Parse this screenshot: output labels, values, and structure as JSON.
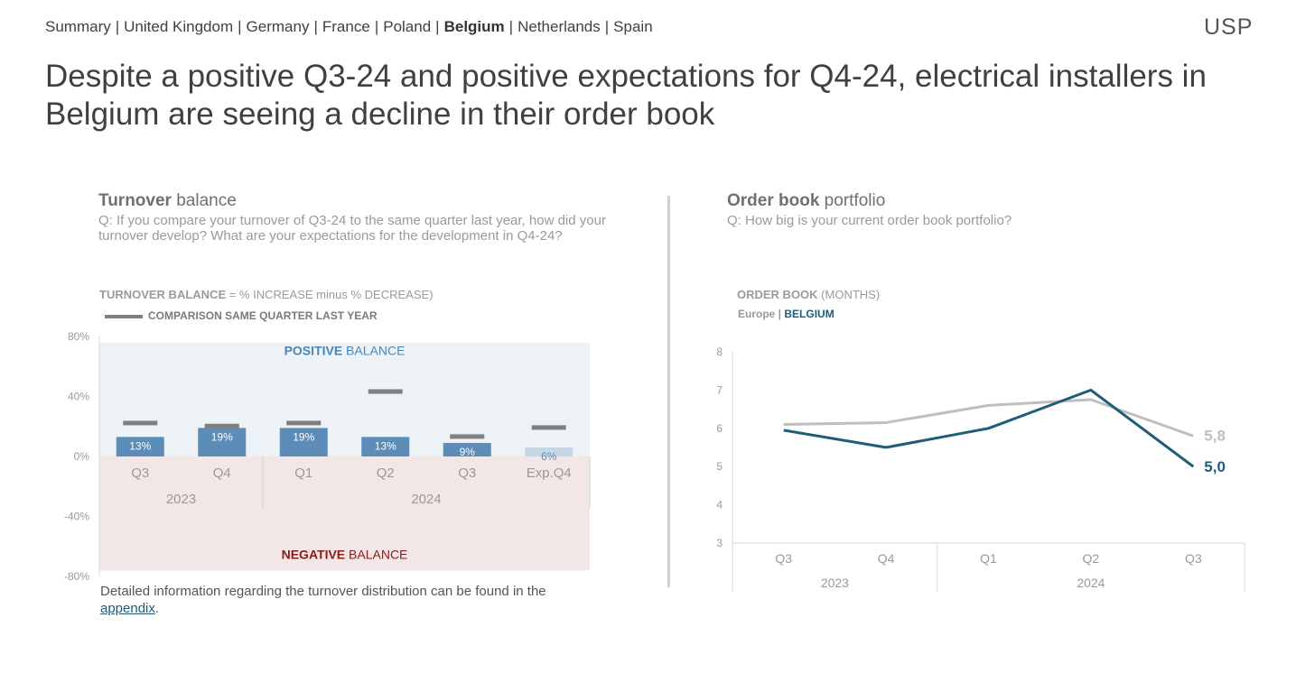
{
  "nav": {
    "items": [
      {
        "label": "Summary",
        "active": false
      },
      {
        "label": "United Kingdom",
        "active": false
      },
      {
        "label": "Germany",
        "active": false
      },
      {
        "label": "France",
        "active": false
      },
      {
        "label": "Poland",
        "active": false
      },
      {
        "label": "Belgium",
        "active": true
      },
      {
        "label": "Netherlands",
        "active": false
      },
      {
        "label": "Spain",
        "active": false
      }
    ],
    "separator": "|"
  },
  "logo": "USP",
  "headline": "Despite a positive Q3-24 and positive expectations for Q4-24, electrical installers in Belgium are seeing a decline in their order book",
  "left_panel": {
    "title_bold": "Turnover",
    "title_rest": " balance",
    "question": "Q: If you compare your turnover of Q3-24 to the same quarter last year, how did your turnover develop? What are your expectations for the development in Q4-24?",
    "chart_label_bold": "TURNOVER BALANCE",
    "chart_label_rest": " = % INCREASE minus % DECREASE)",
    "legend": "COMPARISON SAME QUARTER LAST YEAR",
    "footnote_text": "Detailed information regarding the turnover distribution can be found in the ",
    "footnote_link": "appendix",
    "footnote_end": "."
  },
  "right_panel": {
    "title_bold": "Order book",
    "title_rest": " portfolio",
    "question": "Q: How big is your current order book portfolio?",
    "chart_label_bold": "ORDER BOOK",
    "chart_label_rest": " (MONTHS)",
    "legend_europe": "Europe",
    "legend_sep": " | ",
    "legend_belgium": "BELGIUM"
  },
  "colors": {
    "bar": "#5b8db8",
    "bar_expected": "#c5d6e4",
    "comparison": "#7f7f7f",
    "positive_bg": "#edf2f6",
    "negative_bg": "#f2e6e6",
    "belgium": "#1f5c78",
    "europe": "#bfbfbf",
    "positive_text": "#4a86b8",
    "negative_text": "#8b1a1a"
  },
  "chart_data": [
    {
      "type": "bar",
      "title": "Turnover balance",
      "categories": [
        "Q3",
        "Q4",
        "Q1",
        "Q2",
        "Q3",
        "Exp.Q4"
      ],
      "groups": [
        {
          "label": "2023",
          "span": 2
        },
        {
          "label": "2024",
          "span": 4
        }
      ],
      "series": [
        {
          "values": [
            13,
            19,
            19,
            13,
            9,
            6
          ],
          "labels": [
            "13%",
            "19%",
            "19%",
            "13%",
            "9%",
            "6%"
          ],
          "expected_index": 5
        },
        {
          "name": "COMPARISON SAME QUARTER LAST YEAR",
          "values": [
            22,
            20,
            22,
            43,
            13,
            19
          ]
        }
      ],
      "ylim": [
        -80,
        80
      ],
      "yticks": [
        80,
        40,
        0,
        -40,
        -80
      ],
      "ytick_labels": [
        "80%",
        "40%",
        "0%",
        "-40%",
        "-80%"
      ],
      "regions": {
        "positive_bold": "POSITIVE",
        "positive_rest": " BALANCE",
        "negative_bold": "NEGATIVE",
        "negative_rest": " BALANCE"
      }
    },
    {
      "type": "line",
      "title": "Order book portfolio",
      "categories": [
        "Q3",
        "Q4",
        "Q1",
        "Q2",
        "Q3"
      ],
      "groups": [
        {
          "label": "2023",
          "span": 2
        },
        {
          "label": "2024",
          "span": 3
        }
      ],
      "series": [
        {
          "name": "Europe",
          "values": [
            6.1,
            6.15,
            6.6,
            6.75,
            5.8
          ]
        },
        {
          "name": "BELGIUM",
          "values": [
            5.95,
            5.5,
            6.0,
            7.0,
            5.0
          ]
        }
      ],
      "end_labels": {
        "Europe": "5,8",
        "BELGIUM": "5,0"
      },
      "ylim": [
        3,
        8
      ],
      "yticks": [
        8,
        7,
        6,
        5,
        4,
        3
      ]
    }
  ]
}
